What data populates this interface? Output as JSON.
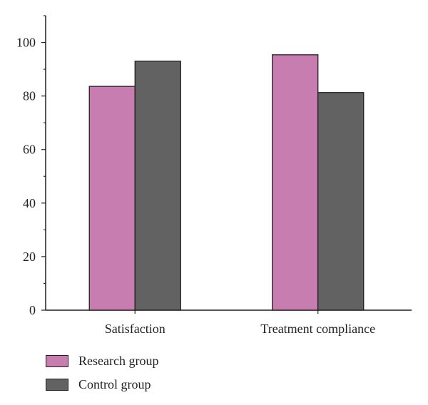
{
  "chart_data": {
    "type": "bar",
    "categories": [
      "Satisfaction",
      "Treatment compliance"
    ],
    "series": [
      {
        "name": "Research group",
        "values": [
          83.6,
          95.4
        ],
        "color": "#c77db0"
      },
      {
        "name": "Control group",
        "values": [
          93.0,
          81.3
        ],
        "color": "#626262"
      }
    ],
    "ylim": [
      0,
      110
    ],
    "yticks": [
      0,
      20,
      40,
      60,
      80,
      100
    ],
    "ytick_labels": [
      "0",
      "20",
      "40",
      "60",
      "80",
      "100"
    ],
    "title": "",
    "xlabel": "",
    "ylabel": "",
    "grid": false,
    "legend_position": "bottom-left"
  }
}
